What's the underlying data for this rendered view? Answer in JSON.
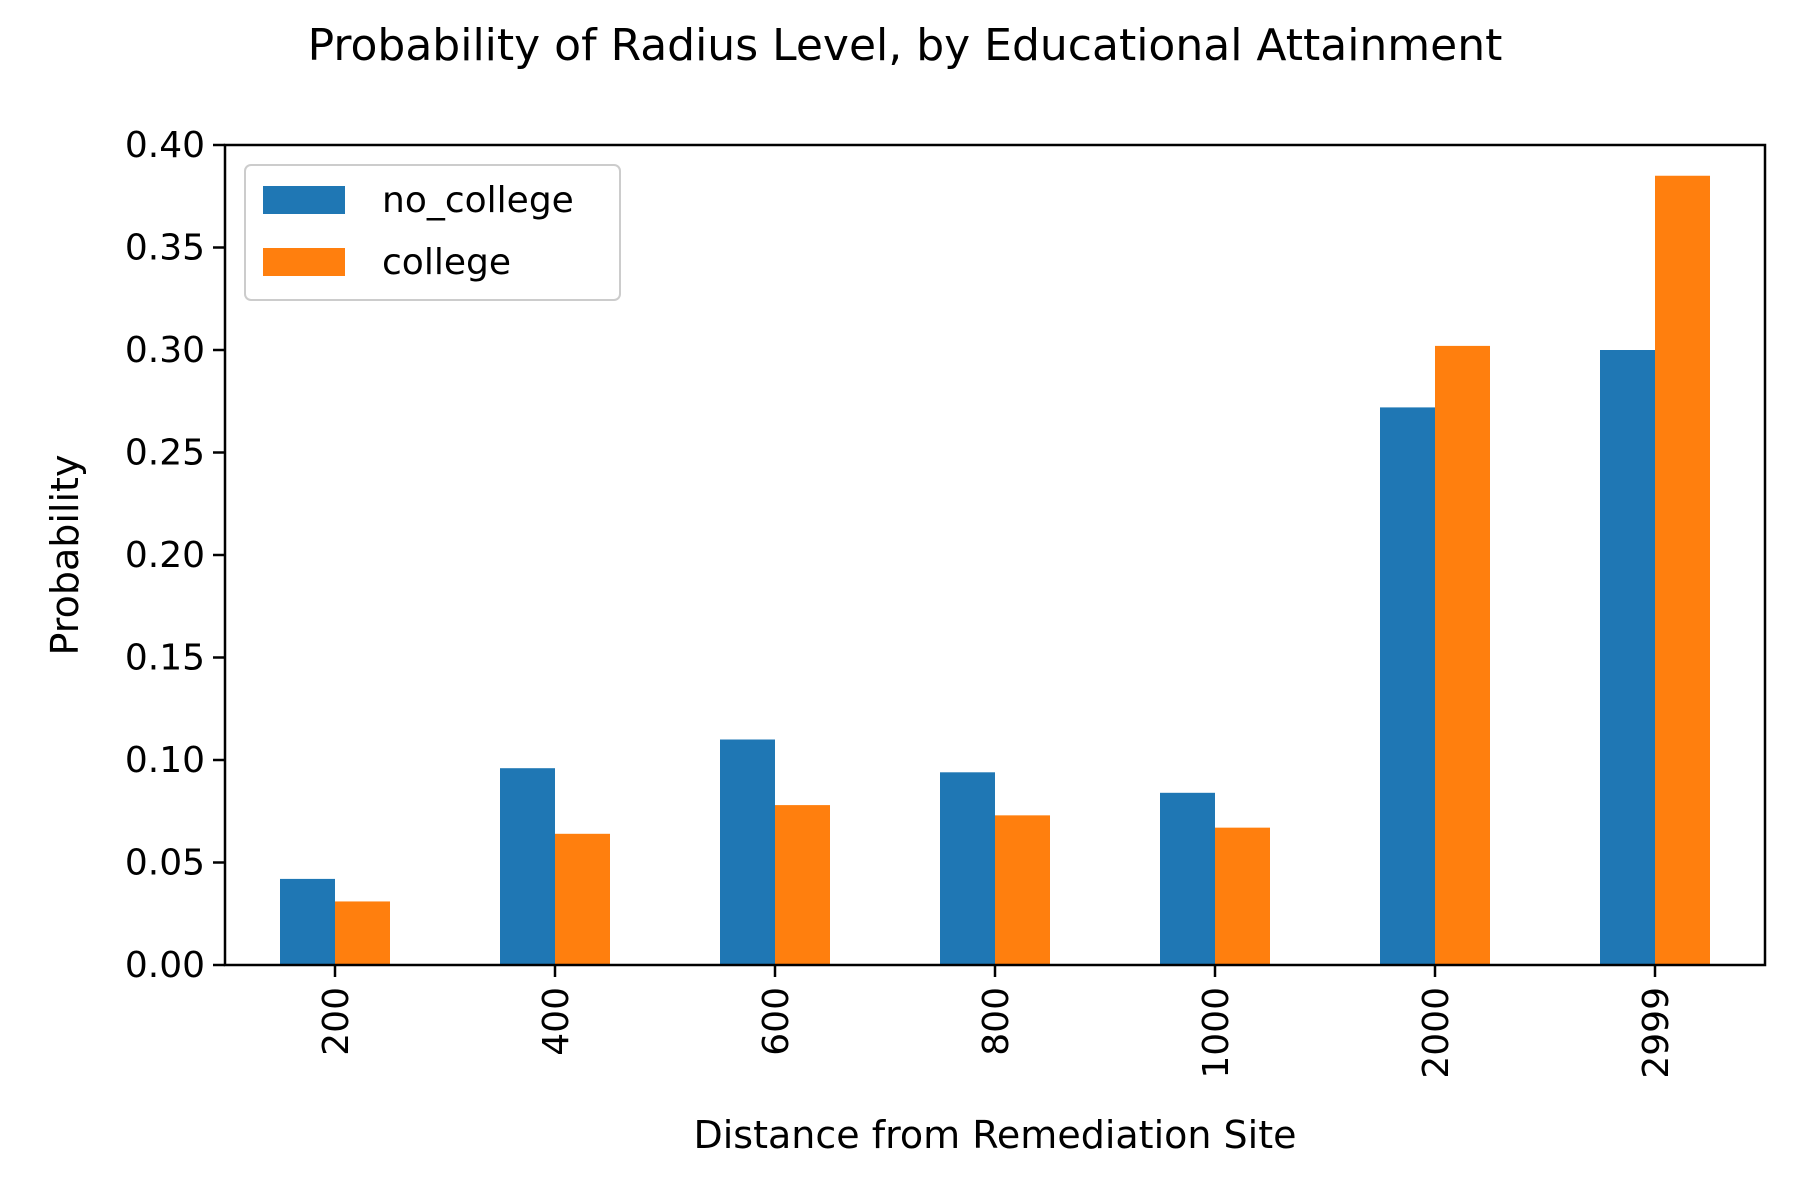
{
  "chart_data": {
    "type": "bar",
    "title": "Probability of Radius Level, by Educational Attainment",
    "xlabel": "Distance from Remediation Site",
    "ylabel": "Probability",
    "categories": [
      "200",
      "400",
      "600",
      "800",
      "1000",
      "2000",
      "2999"
    ],
    "series": [
      {
        "name": "no_college",
        "color": "#1f77b4",
        "values": [
          0.042,
          0.096,
          0.11,
          0.094,
          0.084,
          0.272,
          0.3
        ]
      },
      {
        "name": "college",
        "color": "#ff7f0e",
        "values": [
          0.031,
          0.064,
          0.078,
          0.073,
          0.067,
          0.302,
          0.385
        ]
      }
    ],
    "ylim": [
      0,
      0.4
    ],
    "yticks": [
      "0.00",
      "0.05",
      "0.10",
      "0.15",
      "0.20",
      "0.25",
      "0.30",
      "0.35",
      "0.40"
    ],
    "grid": false,
    "legend_position": "top-left",
    "xtick_rotation": "vertical"
  }
}
